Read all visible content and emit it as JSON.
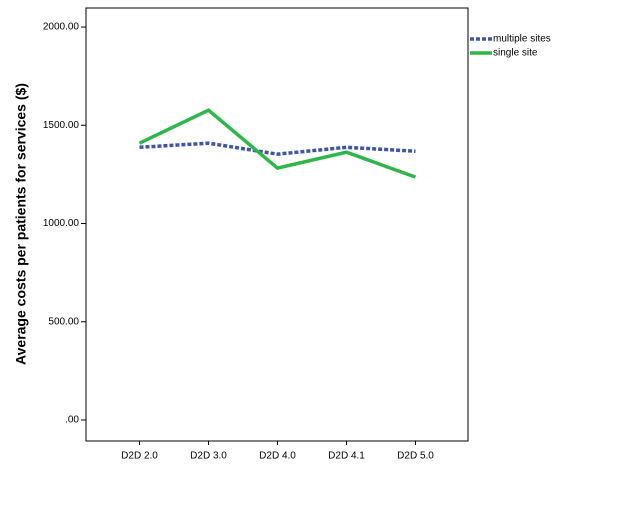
{
  "chart_data": {
    "type": "line",
    "y_label": "Average costs per patients for services ($)",
    "categories": [
      "D2D 2.0",
      "D2D 3.0",
      "D2D 4.0",
      "D2D 4.1",
      "D2D 5.0"
    ],
    "series": [
      {
        "name": "multiple sites",
        "color": "#3f56a5",
        "dash": true,
        "values": [
          1388,
          1409,
          1353,
          1388,
          1368
        ]
      },
      {
        "name": "single site",
        "color": "#2fb64a",
        "dash": false,
        "values": [
          1409,
          1577,
          1282,
          1363,
          1236
        ]
      }
    ],
    "ylim": [
      -107,
      2097
    ],
    "yticks": [
      {
        "value": 0,
        "label": ".00"
      },
      {
        "value": 500,
        "label": "500.00"
      },
      {
        "value": 1000,
        "label": "1000.00"
      },
      {
        "value": 1500,
        "label": "1500.00"
      },
      {
        "value": 2000,
        "label": "2000.00"
      }
    ],
    "legend": "outside-top-right"
  }
}
